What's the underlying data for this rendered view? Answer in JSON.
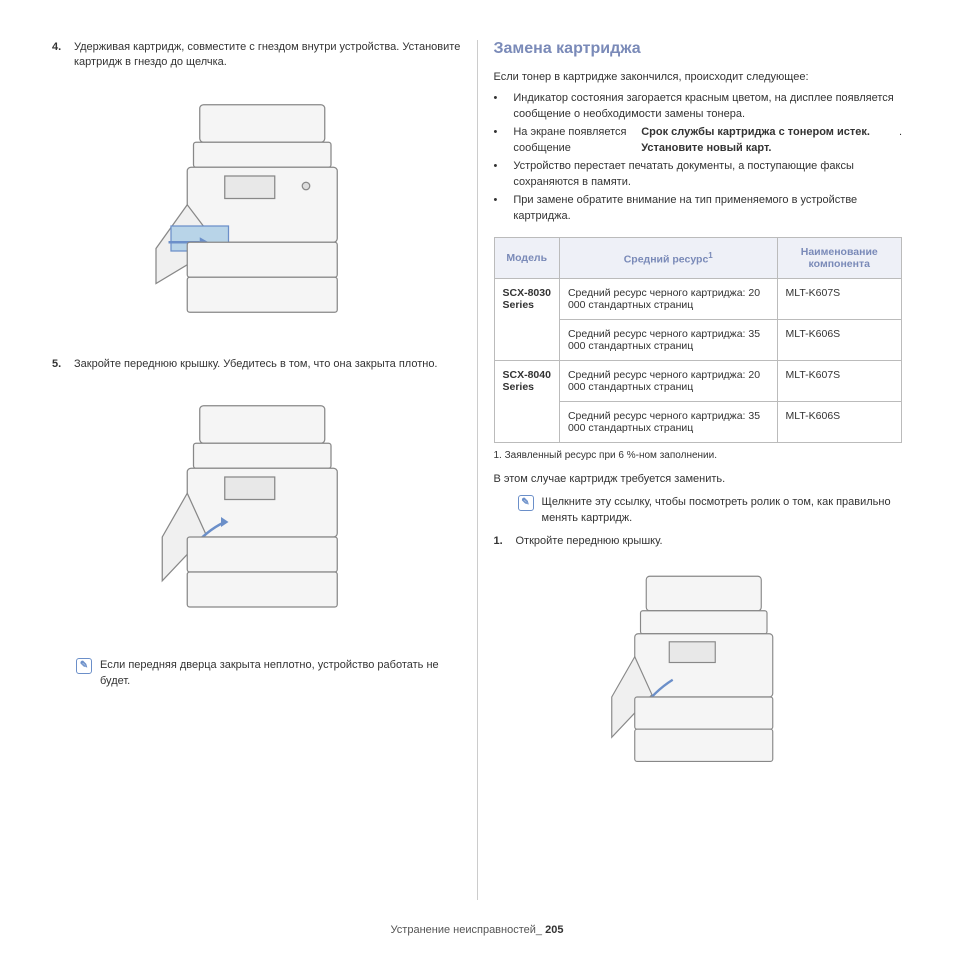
{
  "left": {
    "step4": {
      "num": "4.",
      "text": "Удерживая картридж, совместите с гнездом внутри устройства. Установите картридж в гнездо до щелчка."
    },
    "step5": {
      "num": "5.",
      "text": "Закройте переднюю крышку. Убедитесь в том, что она закрыта плотно."
    },
    "note": "Если передняя дверца закрыта неплотно, устройство работать не будет."
  },
  "right": {
    "heading": "Замена картриджа",
    "intro": "Если тонер в картридже закончился, происходит следующее:",
    "bullets": [
      "Индикатор состояния загорается красным цветом, на дисплее появляется сообщение о необходимости замены тонера.",
      "На экране появляется сообщение <b>Срок службы картриджа с тонером истек. Установите новый карт.</b>.",
      "Устройство перестает печатать документы, а поступающие факсы сохраняются в памяти.",
      "При замене обратите внимание на тип применяемого в устройстве картриджа."
    ],
    "table": {
      "headers": [
        "Модель",
        "Средний ресурс",
        "Наименование компонента"
      ],
      "header_sup": "1",
      "rows": [
        {
          "model": "SCX-8030 Series",
          "resource": "Средний ресурс черного картриджа: 20 000 стандартных страниц",
          "part": "MLT-K607S",
          "rowspan": 2
        },
        {
          "model": "",
          "resource": "Средний ресурс черного картриджа: 35 000 стандартных страниц",
          "part": "MLT-K606S"
        },
        {
          "model": "SCX-8040 Series",
          "resource": "Средний ресурс черного картриджа: 20 000 стандартных страниц",
          "part": "MLT-K607S",
          "rowspan": 2
        },
        {
          "model": "",
          "resource": "Средний ресурс черного картриджа: 35 000 стандартных страниц",
          "part": "MLT-K606S"
        }
      ]
    },
    "footnote": "1. Заявленный ресурс при 6 %-ном заполнении.",
    "after_table": "В этом случае картридж требуется заменить.",
    "link_note": "Щелкните эту ссылку, чтобы посмотреть ролик о том, как правильно менять картридж.",
    "step1": {
      "num": "1.",
      "text": "Откройте переднюю крышку."
    }
  },
  "footer": {
    "section": "Устранение неисправностей_",
    "page": "205"
  },
  "colors": {
    "heading": "#7a8ab8",
    "table_header_bg": "#eef0f7",
    "border": "#bbbbbb",
    "note_icon": "#6b8fc9"
  }
}
